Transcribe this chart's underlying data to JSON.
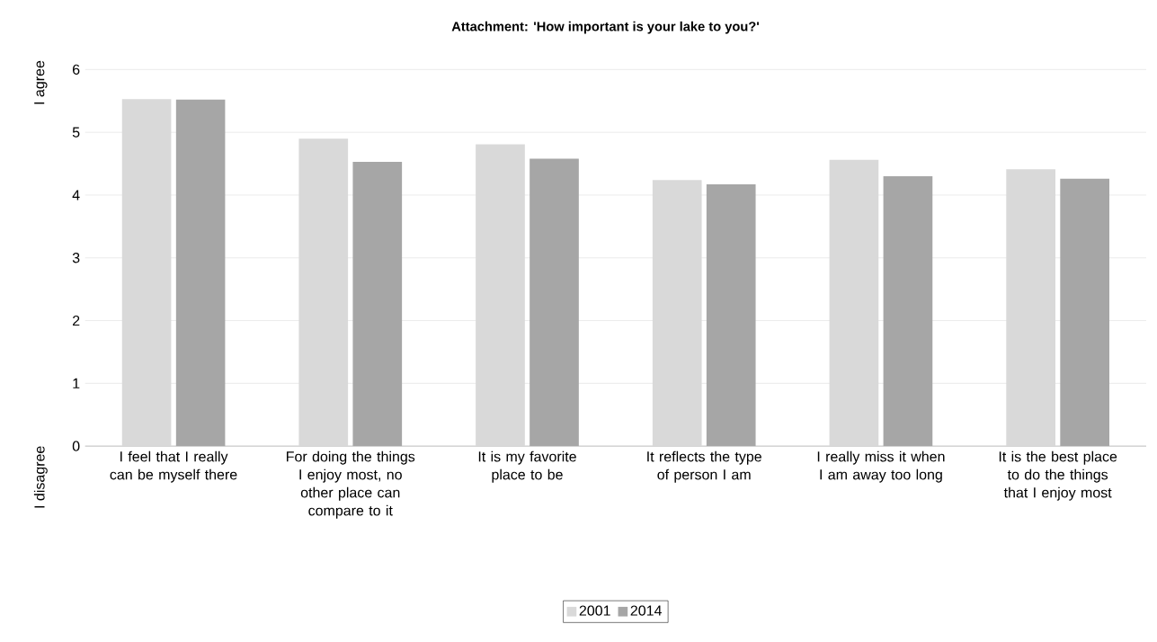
{
  "chart_data": {
    "type": "bar",
    "title": "Attachment:  'How important is your lake to you?'",
    "categories": [
      "I feel that I really can be myself there",
      "For doing the things I enjoy most, no other place can compare to it",
      "It is my favorite place to be",
      "It reflects the type of person I am",
      "I really miss it when I am away too long",
      "It is the best place to do the things that I enjoy most"
    ],
    "series": [
      {
        "name": "2001",
        "color": "#d9d9d9",
        "values": [
          5.53,
          4.9,
          4.81,
          4.24,
          4.56,
          4.41
        ]
      },
      {
        "name": "2014",
        "color": "#a6a6a6",
        "values": [
          5.52,
          4.53,
          4.58,
          4.17,
          4.3,
          4.26
        ]
      }
    ],
    "ylim": [
      0,
      6
    ],
    "yticks": [
      0,
      1,
      2,
      3,
      4,
      5,
      6
    ],
    "grid": "y",
    "legend": "bottom",
    "annotations": [
      "I agree",
      "I disagree"
    ]
  }
}
